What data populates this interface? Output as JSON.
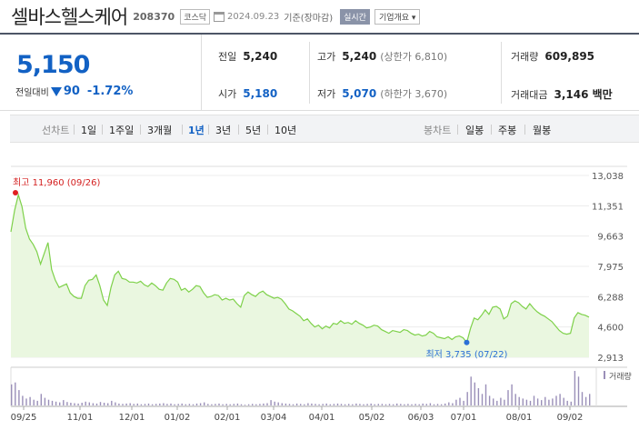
{
  "header": {
    "company": "셀바스헬스케어",
    "code": "208370",
    "market": "코스닥",
    "date": "2024.09.23",
    "basis": "기준(장마감)",
    "live_label": "실시간",
    "info_label": "기업개요 ▾"
  },
  "quote": {
    "price": "5,150",
    "change_label": "전일대비",
    "change_amount": "90",
    "change_pct": "-1.72%",
    "prev_close_label": "전일",
    "prev_close": "5,240",
    "open_label": "시가",
    "open": "5,180",
    "high_label": "고가",
    "high": "5,240",
    "upper_limit": "(상한가 6,810)",
    "low_label": "저가",
    "low": "5,070",
    "lower_limit": "(하한가 3,670)",
    "volume_label": "거래량",
    "volume": "609,895",
    "amount_label": "거래대금",
    "amount": "3,146 백만",
    "down_color": "#1261c4"
  },
  "tabs": {
    "period_head": "선차트",
    "periods": [
      "1일",
      "1주일",
      "3개월",
      "1년",
      "3년",
      "5년",
      "10년"
    ],
    "selected_period": "1년",
    "candle_head": "봉차트",
    "candles": [
      "일봉",
      "주봉",
      "월봉"
    ]
  },
  "chart_data": {
    "type": "area",
    "title": "",
    "x_ticks": [
      "09/25",
      "11/01",
      "12/01",
      "01/02",
      "02/01",
      "03/04",
      "04/01",
      "05/02",
      "06/03",
      "07/01",
      "08/01",
      "09/02"
    ],
    "y_ticks": [
      "13,038",
      "11,351",
      "9,663",
      "7,975",
      "6,288",
      "4,600",
      "2,913"
    ],
    "ylim": [
      2913,
      13038
    ],
    "high_annotation": "최고 11,960 (09/26)",
    "low_annotation": "최저 3,735 (07/22)",
    "volume_label": "거래량",
    "line_color": "#7ed14a",
    "fill_color": "#eaf7e0",
    "values": [
      9900,
      11100,
      11960,
      11300,
      10100,
      9500,
      9200,
      8800,
      8100,
      8700,
      9300,
      7800,
      7200,
      6800,
      6900,
      7000,
      6500,
      6300,
      6200,
      6200,
      6900,
      7200,
      7250,
      7500,
      6900,
      6100,
      5800,
      6800,
      7500,
      7700,
      7300,
      7250,
      7100,
      7100,
      7050,
      7150,
      6950,
      6850,
      7050,
      6900,
      6700,
      6650,
      7050,
      7300,
      7250,
      7100,
      6650,
      6750,
      6550,
      6700,
      6900,
      6850,
      6500,
      6250,
      6300,
      6400,
      6350,
      6100,
      6200,
      6100,
      6150,
      5900,
      5700,
      6350,
      6550,
      6400,
      6300,
      6500,
      6600,
      6400,
      6300,
      6200,
      6250,
      6150,
      5900,
      5600,
      5500,
      5350,
      5200,
      4950,
      5050,
      4800,
      4600,
      4700,
      4500,
      4650,
      4550,
      4800,
      4750,
      4950,
      4800,
      4850,
      4750,
      4950,
      4800,
      4700,
      4550,
      4600,
      4700,
      4650,
      4450,
      4350,
      4250,
      4400,
      4350,
      4300,
      4450,
      4400,
      4250,
      4150,
      4200,
      4100,
      4150,
      4350,
      4250,
      4050,
      4000,
      3950,
      4050,
      3900,
      4050,
      4100,
      4000,
      3735,
      4500,
      5100,
      5000,
      5250,
      5550,
      5300,
      5700,
      5750,
      5600,
      5050,
      5200,
      5900,
      6050,
      5950,
      5750,
      5600,
      5900,
      5650,
      5450,
      5300,
      5200,
      5050,
      4900,
      4650,
      4400,
      4250,
      4200,
      4250,
      5100,
      5400,
      5300,
      5250,
      5150
    ],
    "volume": [
      55,
      60,
      40,
      25,
      18,
      22,
      15,
      12,
      30,
      20,
      15,
      12,
      10,
      8,
      14,
      9,
      7,
      6,
      5,
      7,
      10,
      8,
      6,
      5,
      9,
      7,
      6,
      12,
      8,
      5,
      4,
      5,
      6,
      4,
      5,
      3,
      4,
      5,
      3,
      4,
      5,
      6,
      4,
      5,
      3,
      4,
      5,
      3,
      4,
      3,
      5,
      6,
      8,
      4,
      3,
      4,
      5,
      3,
      4,
      3,
      4,
      5,
      3,
      2,
      3,
      4,
      3,
      4,
      5,
      6,
      14,
      10,
      8,
      6,
      5,
      4,
      3,
      5,
      4,
      3,
      6,
      5,
      4,
      3,
      4,
      5,
      3,
      4,
      5,
      4,
      3,
      4,
      3,
      5,
      4,
      3,
      4,
      5,
      3,
      4,
      4,
      3,
      4,
      3,
      5,
      4,
      3,
      4,
      3,
      4,
      3,
      5,
      4,
      6,
      3,
      4,
      3,
      5,
      8,
      6,
      15,
      20,
      12,
      35,
      75,
      60,
      45,
      30,
      55,
      25,
      18,
      12,
      20,
      15,
      40,
      55,
      30,
      22,
      18,
      15,
      12,
      25,
      18,
      14,
      22,
      15,
      18,
      25,
      30,
      20,
      12,
      10,
      90,
      75,
      35,
      22,
      30
    ]
  }
}
